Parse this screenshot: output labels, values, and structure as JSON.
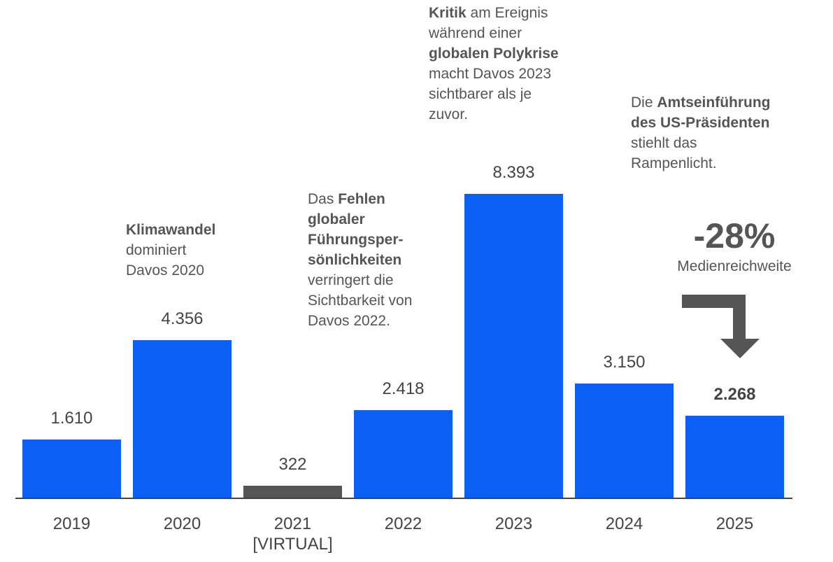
{
  "chart_data": {
    "type": "bar",
    "categories": [
      "2019",
      "2020",
      "2021\n[VIRTUAL]",
      "2022",
      "2023",
      "2024",
      "2025"
    ],
    "values": [
      1610,
      4356,
      322,
      2418,
      8393,
      3150,
      2268
    ],
    "value_labels": [
      "1.610",
      "4.356",
      "322",
      "2.418",
      "8.393",
      "3.150",
      "2.268"
    ],
    "bold_labels": [
      false,
      false,
      false,
      false,
      false,
      false,
      true
    ],
    "colors": [
      "#0b5ff5",
      "#0b5ff5",
      "#555555",
      "#0b5ff5",
      "#0b5ff5",
      "#0b5ff5",
      "#0b5ff5"
    ],
    "annotations": [
      {
        "bar": 1,
        "parts": [
          {
            "text": "Klimawandel",
            "bold": true
          },
          {
            "text": "\ndominiert\nDavos 2020",
            "bold": false
          }
        ]
      },
      {
        "bar": 3,
        "parts": [
          {
            "text": "Das ",
            "bold": false
          },
          {
            "text": "Fehlen\nglobaler\nFührungsper-\nsönlichkeiten",
            "bold": true
          },
          {
            "text": "\nverringert die\nSichtbarkeit von\nDavos 2022.",
            "bold": false
          }
        ]
      },
      {
        "bar": 4,
        "parts": [
          {
            "text": "Kritik",
            "bold": true
          },
          {
            "text": " am Ereignis\nwährend einer\n",
            "bold": false
          },
          {
            "text": "globalen Polykrise",
            "bold": true
          },
          {
            "text": "\nmacht Davos 2023\nsichtbarer als je\nzuvor.",
            "bold": false
          }
        ]
      },
      {
        "bar": 6,
        "parts": [
          {
            "text": "Die ",
            "bold": false
          },
          {
            "text": "Amtseinführung\ndes US-Präsidenten",
            "bold": true
          },
          {
            "text": "\nstiehlt das\nRampenlicht.",
            "bold": false
          }
        ]
      }
    ],
    "callout": {
      "text": "-28%",
      "caption": "Medienreichweite"
    }
  }
}
